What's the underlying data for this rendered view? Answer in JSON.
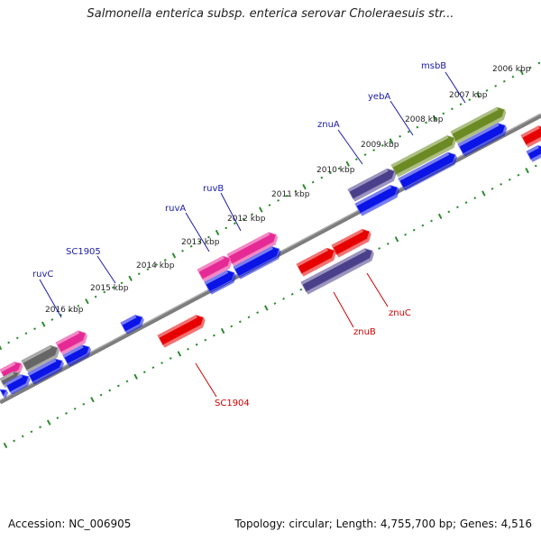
{
  "title": "Salmonella enterica subsp. enterica serovar Choleraesuis str...",
  "footer": {
    "accession": "Accession: NC_006905",
    "summary": "Topology: circular; Length: 4,755,700 bp; Genes: 4,516"
  },
  "colors": {
    "forward_label": "#1a1aa8",
    "reverse_label": "#cc0000",
    "tick": "#2e8b2e",
    "backbone": "#7d7d7d",
    "cds_blue": "#0a14e6",
    "cds_red": "#e60000",
    "cds_pink": "#e62a95",
    "cds_olive": "#6b8a23",
    "cds_purple": "#4a3f8a",
    "cds_gray": "#666666"
  },
  "kbp_labels": [
    {
      "text": "2006 kbp"
    },
    {
      "text": "2007 kbp"
    },
    {
      "text": "2008 kbp"
    },
    {
      "text": "2009 kbp"
    },
    {
      "text": "2010 kbp"
    },
    {
      "text": "2011 kbp"
    },
    {
      "text": "2012 kbp"
    },
    {
      "text": "2013 kbp"
    },
    {
      "text": "2014 kbp"
    },
    {
      "text": "2015 kbp"
    },
    {
      "text": "2016 kbp"
    }
  ],
  "forward_genes": [
    {
      "name": "msbB"
    },
    {
      "name": "yebA"
    },
    {
      "name": "znuA"
    },
    {
      "name": "ruvB"
    },
    {
      "name": "ruvA"
    },
    {
      "name": "SC1905"
    },
    {
      "name": "ruvC"
    }
  ],
  "reverse_genes": [
    {
      "name": "znuC"
    },
    {
      "name": "znuB"
    },
    {
      "name": "SC1904"
    }
  ]
}
